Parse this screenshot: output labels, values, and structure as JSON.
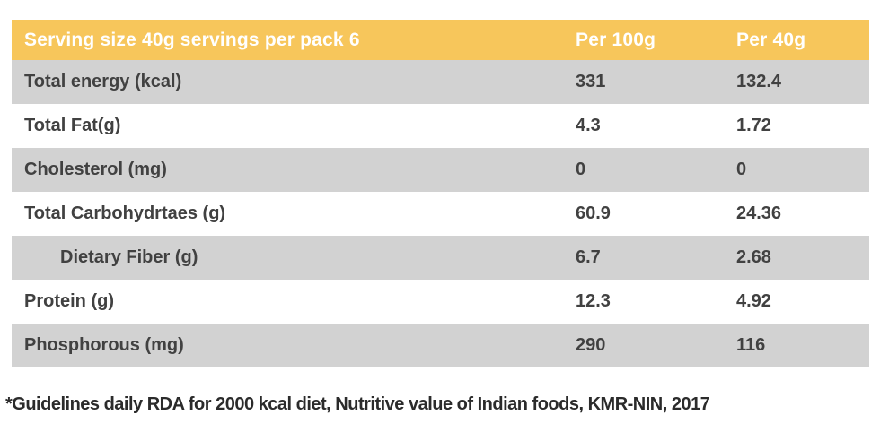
{
  "table": {
    "header": {
      "label": "Serving size 40g servings per pack 6",
      "col_per_100g": "Per 100g",
      "col_per_40g": "Per 40g"
    },
    "rows": [
      {
        "label": "Total energy (kcal)",
        "per_100g": "331",
        "per_40g": "132.4"
      },
      {
        "label": "Total Fat(g)",
        "per_100g": "4.3",
        "per_40g": "1.72"
      },
      {
        "label": "Cholesterol (mg)",
        "per_100g": "0",
        "per_40g": "0"
      },
      {
        "label": "Total Carbohydrtaes (g)",
        "per_100g": "60.9",
        "per_40g": "24.36"
      },
      {
        "label": "Dietary Fiber (g)",
        "per_100g": "6.7",
        "per_40g": "2.68"
      },
      {
        "label": "Protein (g)",
        "per_100g": "12.3",
        "per_40g": "4.92"
      },
      {
        "label": "Phosphorous (mg)",
        "per_100g": "290",
        "per_40g": "116"
      }
    ]
  },
  "footnote": "*Guidelines daily RDA for 2000 kcal diet, Nutritive value of Indian foods, KMR-NIN, 2017",
  "colors": {
    "header_bg": "#F7C65B",
    "row_alt_bg": "#D2D2D2",
    "header_text": "#FFFFFF",
    "body_text": "#414141",
    "footnote_text": "#2B2B2B"
  }
}
